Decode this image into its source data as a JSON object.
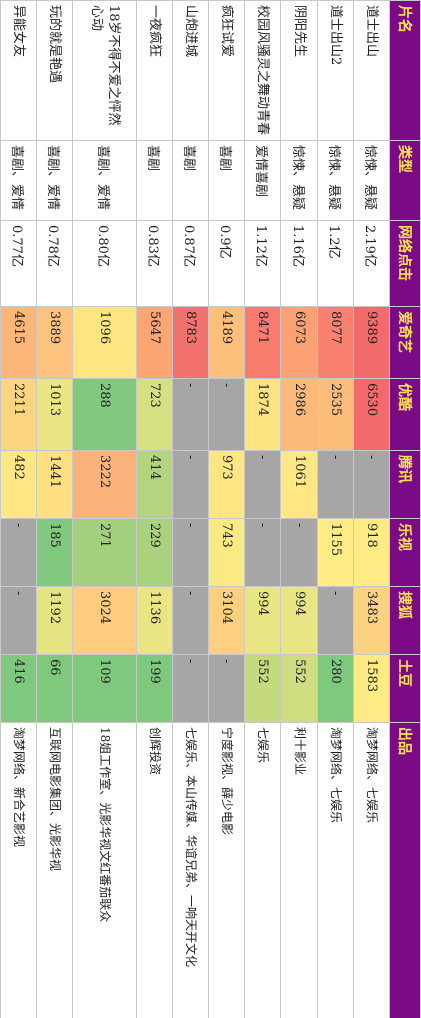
{
  "colors": {
    "header_bg": "#7b0a87",
    "header_text": "#ffe44d",
    "missing": "#a6a6a6"
  },
  "headers": [
    "片名",
    "类型",
    "网络点击",
    "爱奇艺",
    "优酷",
    "腾讯",
    "乐视",
    "搜狐",
    "土豆",
    "出品"
  ],
  "rows": [
    {
      "title": "道士出山",
      "genre": "惊悚、悬疑",
      "clicks": "2.19亿",
      "iqiyi": {
        "text": "9389",
        "color": "#f26b6b"
      },
      "youku": {
        "text": "6530",
        "color": "#f26b6b"
      },
      "tencent": {
        "text": "-",
        "color": "#a6a6a6"
      },
      "letv": {
        "text": "918",
        "color": "#ffeb84"
      },
      "sohu": {
        "text": "3483",
        "color": "#fdd281"
      },
      "tudou": {
        "text": "1583",
        "color": "#ffeb84"
      },
      "producer": "淘梦网络、七娱乐"
    },
    {
      "title": "道士出山2",
      "genre": "惊悚、悬疑",
      "clicks": "1.2亿",
      "iqiyi": {
        "text": "8077",
        "color": "#f8816f"
      },
      "youku": {
        "text": "2535",
        "color": "#fcbd7b"
      },
      "tencent": {
        "text": "-",
        "color": "#a6a6a6"
      },
      "letv": {
        "text": "1155",
        "color": "#ffeb84"
      },
      "sohu": {
        "text": "-",
        "color": "#a6a6a6"
      },
      "tudou": {
        "text": "280",
        "color": "#7fc97e"
      },
      "producer": "淘梦网络、七娱乐"
    },
    {
      "title": "阴阳先生",
      "genre": "惊悚、悬疑",
      "clicks": "1.16亿",
      "iqiyi": {
        "text": "6073",
        "color": "#fba173"
      },
      "youku": {
        "text": "2986",
        "color": "#fcb97a"
      },
      "tencent": {
        "text": "1061",
        "color": "#ffe783"
      },
      "letv": {
        "text": "-",
        "color": "#a6a6a6"
      },
      "sohu": {
        "text": "994",
        "color": "#e8e683"
      },
      "tudou": {
        "text": "552",
        "color": "#cfdd80"
      },
      "producer": "利十影业"
    },
    {
      "title": "校园风骚灵之舞动青春",
      "genre": "爱情喜剧",
      "clicks": "1.12亿",
      "iqiyi": {
        "text": "8471",
        "color": "#f77c6e"
      },
      "youku": {
        "text": "1874",
        "color": "#fee382"
      },
      "tencent": {
        "text": "-",
        "color": "#a6a6a6"
      },
      "letv": {
        "text": "-",
        "color": "#a6a6a6"
      },
      "sohu": {
        "text": "994",
        "color": "#e8e683"
      },
      "tudou": {
        "text": "552",
        "color": "#c5da7f"
      },
      "producer": "七娱乐"
    },
    {
      "title": "疯狂试爱",
      "genre": "喜剧",
      "clicks": "0.9亿",
      "iqiyi": {
        "text": "4189",
        "color": "#fdbf7c"
      },
      "youku": {
        "text": "-",
        "color": "#a6a6a6"
      },
      "tencent": {
        "text": "973",
        "color": "#fee782"
      },
      "letv": {
        "text": "743",
        "color": "#fbe983"
      },
      "sohu": {
        "text": "3104",
        "color": "#fdd07f"
      },
      "tudou": {
        "text": "-",
        "color": "#a6a6a6"
      },
      "producer": "宁度影视、薛少电影"
    },
    {
      "title": "山炮进城",
      "genre": "喜剧",
      "clicks": "0.87亿",
      "iqiyi": {
        "text": "8783",
        "color": "#f4726d"
      },
      "youku": {
        "text": "-",
        "color": "#a6a6a6"
      },
      "tencent": {
        "text": "-",
        "color": "#a6a6a6"
      },
      "letv": {
        "text": "-",
        "color": "#a6a6a6"
      },
      "sohu": {
        "text": "-",
        "color": "#a6a6a6"
      },
      "tudou": {
        "text": "-",
        "color": "#a6a6a6"
      },
      "producer": "七娱乐、本山传媒、华谊兄弟、一响天开文化"
    },
    {
      "title": "一夜疯狂",
      "genre": "喜剧",
      "clicks": "0.83亿",
      "iqiyi": {
        "text": "5647",
        "color": "#fca674"
      },
      "youku": {
        "text": "723",
        "color": "#d6df81"
      },
      "tencent": {
        "text": "414",
        "color": "#b5d47f"
      },
      "letv": {
        "text": "229",
        "color": "#aad17e"
      },
      "sohu": {
        "text": "1136",
        "color": "#e9e583"
      },
      "tudou": {
        "text": "199",
        "color": "#7fc97e"
      },
      "producer": "创辉投资"
    },
    {
      "title": "18岁不得不爱之怦然心动",
      "genre": "喜剧、爱情",
      "clicks": "0.80亿",
      "iqiyi": {
        "text": "1096",
        "color": "#fee582"
      },
      "youku": {
        "text": "288",
        "color": "#80c97e"
      },
      "tencent": {
        "text": "3222",
        "color": "#fcb37a"
      },
      "letv": {
        "text": "271",
        "color": "#a4cf7e"
      },
      "sohu": {
        "text": "3024",
        "color": "#fdcc7e"
      },
      "tudou": {
        "text": "109",
        "color": "#7fc97e"
      },
      "producer": "18姐工作室、光影华视文红番茄联众"
    },
    {
      "title": "玩的就是艳遇",
      "genre": "喜剧、爱情",
      "clicks": "0.78亿",
      "iqiyi": {
        "text": "3889",
        "color": "#fdc27d"
      },
      "youku": {
        "text": "1013",
        "color": "#ece584"
      },
      "tencent": {
        "text": "1441",
        "color": "#ffdf81"
      },
      "letv": {
        "text": "185",
        "color": "#80c97e"
      },
      "sohu": {
        "text": "1192",
        "color": "#e4e483"
      },
      "tudou": {
        "text": "66",
        "color": "#7fc97e"
      },
      "producer": "互联网电影集团、光影华视"
    },
    {
      "title": "异能女友",
      "genre": "喜剧、爱情",
      "clicks": "0.77亿",
      "iqiyi": {
        "text": "4615",
        "color": "#fcb778"
      },
      "youku": {
        "text": "2211",
        "color": "#fdd57f"
      },
      "tencent": {
        "text": "482",
        "color": "#ffe783"
      },
      "letv": {
        "text": "-",
        "color": "#a6a6a6"
      },
      "sohu": {
        "text": "-",
        "color": "#a6a6a6"
      },
      "tudou": {
        "text": "416",
        "color": "#7fc97e"
      },
      "producer": "淘梦网络、新合艺影视"
    }
  ]
}
